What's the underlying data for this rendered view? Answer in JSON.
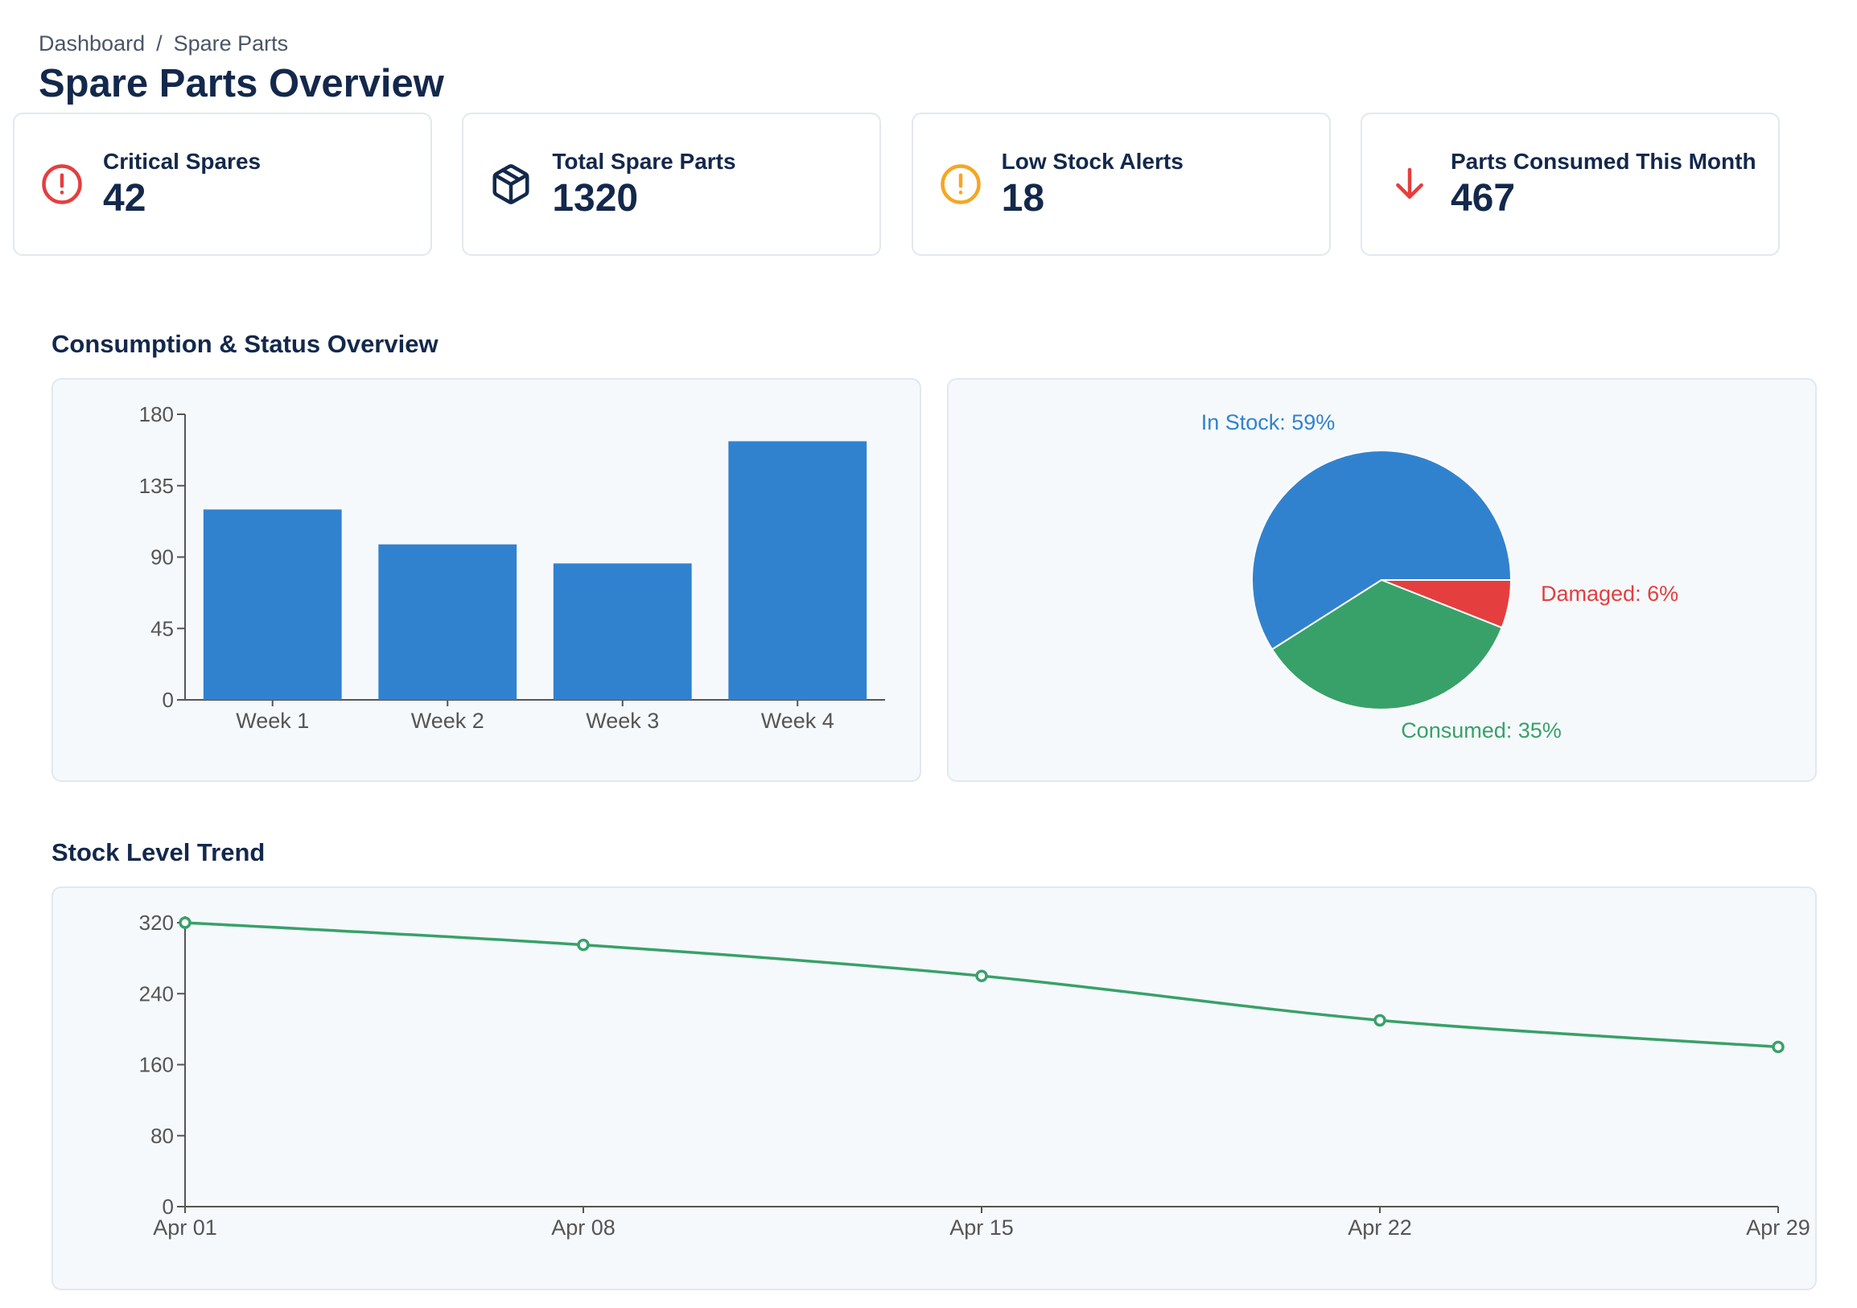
{
  "breadcrumb": {
    "items": [
      "Dashboard",
      "Spare Parts"
    ],
    "separator": "/"
  },
  "page_title": "Spare Parts Overview",
  "kpis": [
    {
      "label": "Critical Spares",
      "value": "42",
      "icon": "alert-circle-icon",
      "color": "#e53e3e"
    },
    {
      "label": "Total Spare Parts",
      "value": "1320",
      "icon": "box-icon",
      "color": "#13284b"
    },
    {
      "label": "Low Stock Alerts",
      "value": "18",
      "icon": "warning-circle-icon",
      "color": "#f6a623"
    },
    {
      "label": "Parts Consumed This Month",
      "value": "467",
      "icon": "arrow-down-icon",
      "color": "#e53e3e"
    }
  ],
  "sections": {
    "consumption": "Consumption & Status Overview",
    "trend": "Stock Level Trend"
  },
  "chart_data": [
    {
      "type": "bar",
      "categories": [
        "Week 1",
        "Week 2",
        "Week 3",
        "Week 4"
      ],
      "values": [
        120,
        98,
        86,
        163
      ],
      "ylim": [
        0,
        180
      ],
      "yticks": [
        0,
        45,
        90,
        135,
        180
      ],
      "color": "#3182ce"
    },
    {
      "type": "pie",
      "slices": [
        {
          "name": "In Stock",
          "label": "In Stock: 59%",
          "value": 59,
          "color": "#3182ce"
        },
        {
          "name": "Damaged",
          "label": "Damaged: 6%",
          "value": 6,
          "color": "#e53e3e"
        },
        {
          "name": "Consumed",
          "label": "Consumed: 35%",
          "value": 35,
          "color": "#38a169"
        }
      ]
    },
    {
      "type": "line",
      "x": [
        "Apr 01",
        "Apr 08",
        "Apr 15",
        "Apr 22",
        "Apr 29"
      ],
      "values": [
        320,
        295,
        260,
        210,
        180
      ],
      "ylim": [
        0,
        320
      ],
      "yticks": [
        0,
        80,
        160,
        240,
        320
      ],
      "color": "#38a169"
    }
  ]
}
